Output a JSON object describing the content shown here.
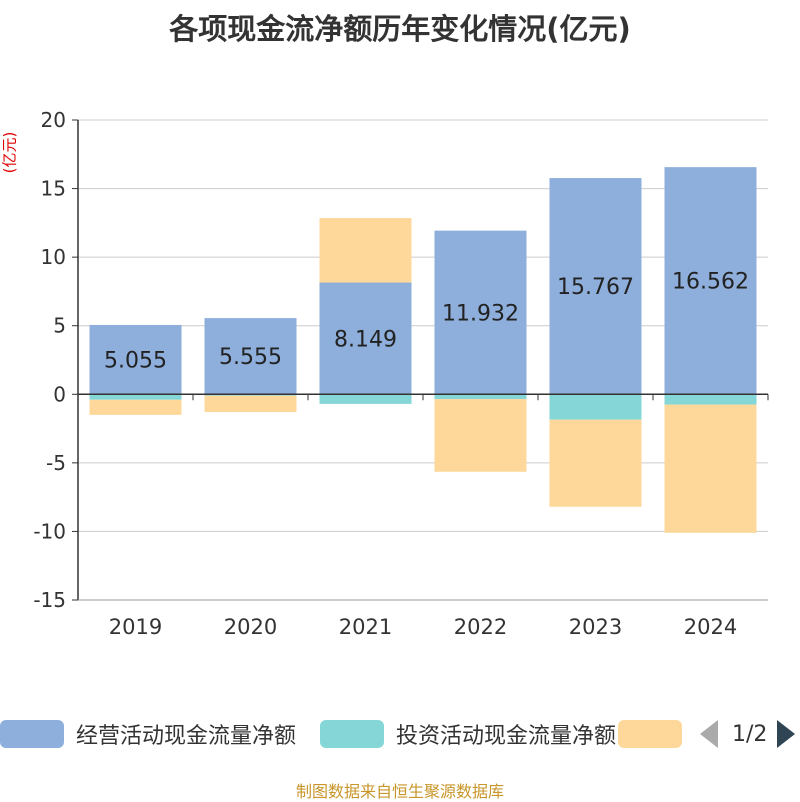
{
  "title": "各项现金流净额历年变化情况(亿元)",
  "unit_label": "(亿元)",
  "source": "制图数据来自恒生聚源数据库",
  "legend": {
    "items": [
      {
        "label": "经营活动现金流量净额",
        "color": "#8eaedb"
      },
      {
        "label": "投资活动现金流量净额",
        "color": "#85d6d6"
      },
      {
        "label": "",
        "color": "#fdd89a"
      }
    ],
    "page_indicator": "1/2"
  },
  "chart_data": {
    "type": "bar",
    "stacked": true,
    "categories": [
      "2019",
      "2020",
      "2021",
      "2022",
      "2023",
      "2024"
    ],
    "series": [
      {
        "name": "经营活动现金流量净额",
        "color": "#8eaedb",
        "values": [
          5.055,
          5.555,
          8.149,
          11.932,
          15.767,
          16.562
        ],
        "labels": [
          "5.055",
          "5.555",
          "8.149",
          "11.932",
          "15.767",
          "16.562"
        ]
      },
      {
        "name": "投资活动现金流量净额",
        "color": "#85d6d6",
        "values": [
          -0.4,
          -0.1,
          -0.7,
          -0.35,
          -1.85,
          -0.75
        ]
      },
      {
        "name": "",
        "color": "#fdd89a",
        "values": [
          -1.1,
          -1.2,
          4.7,
          -5.3,
          -6.35,
          -9.35
        ]
      }
    ],
    "yticks": [
      20,
      15,
      10,
      5,
      0,
      -5,
      -10,
      -15
    ],
    "ylim": [
      -15,
      20
    ],
    "grid": true
  }
}
